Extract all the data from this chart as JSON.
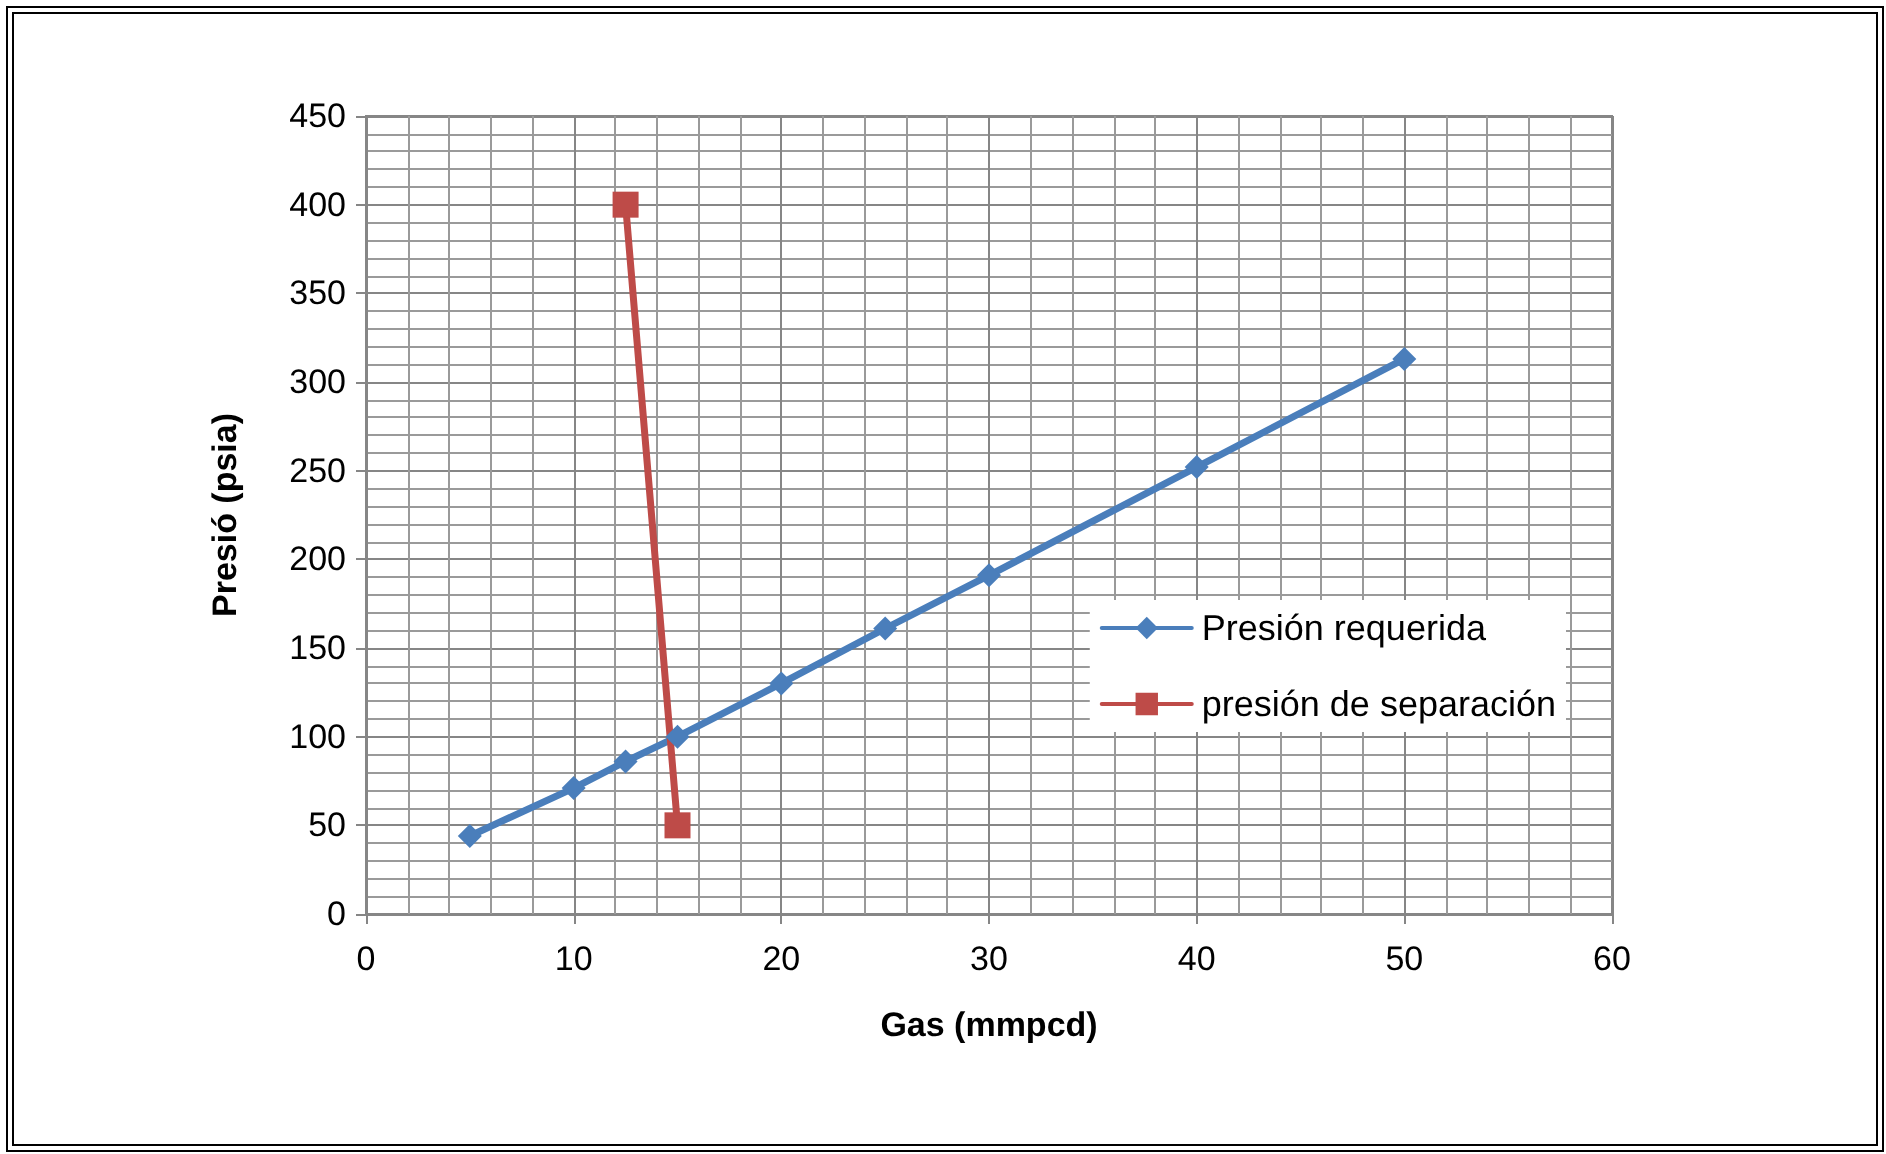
{
  "chart_data": {
    "type": "line",
    "xlabel": "Gas (mmpcd)",
    "ylabel": "Presió (psia)",
    "xlim": [
      0,
      60
    ],
    "xticks": [
      0,
      10,
      20,
      30,
      40,
      50,
      60
    ],
    "ylim": [
      0,
      450
    ],
    "yticks": [
      0,
      50,
      100,
      150,
      200,
      250,
      300,
      350,
      400,
      450
    ],
    "grid": true,
    "legend": "right",
    "line_style": "solid",
    "series": [
      {
        "name": "Presión requerida",
        "color": "#4a7ebb",
        "marker": "diamond",
        "x": [
          5,
          10,
          12.5,
          15,
          20,
          25,
          30,
          40,
          50
        ],
        "values": [
          44,
          71,
          86,
          100,
          130,
          161,
          191,
          252,
          313
        ]
      },
      {
        "name": "presión de separación",
        "color": "#be4b48",
        "marker": "square",
        "x": [
          12.5,
          15
        ],
        "values": [
          400,
          50
        ]
      }
    ]
  }
}
